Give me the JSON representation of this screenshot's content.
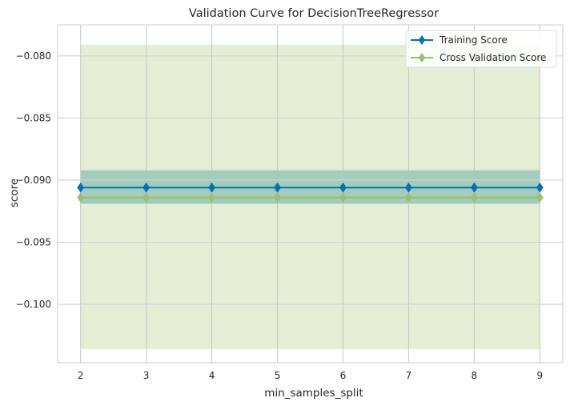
{
  "chart_data": {
    "type": "line",
    "title": "Validation Curve for DecisionTreeRegressor",
    "xlabel": "min_samples_split",
    "ylabel": "score",
    "x": [
      2,
      3,
      4,
      5,
      6,
      7,
      8,
      9
    ],
    "xlim": [
      1.65,
      9.35
    ],
    "ylim": [
      -0.1047,
      -0.0775
    ],
    "yticks": [
      -0.08,
      -0.085,
      -0.09,
      -0.095,
      -0.1
    ],
    "ytick_labels": [
      "−0.080",
      "−0.085",
      "−0.090",
      "−0.095",
      "−0.100"
    ],
    "grid": true,
    "legend_position": "top-right",
    "series": [
      {
        "name": "Training Score",
        "color": "#0072b2",
        "marker": "diamond",
        "values": [
          -0.0906,
          -0.0906,
          -0.0906,
          -0.0906,
          -0.0906,
          -0.0906,
          -0.0906,
          -0.0906
        ],
        "band_upper": -0.0892,
        "band_lower": -0.0919,
        "band_color": "#2a8d8f"
      },
      {
        "name": "Cross Validation Score",
        "color": "#99c06f",
        "marker": "diamond",
        "values": [
          -0.0914,
          -0.0914,
          -0.0914,
          -0.0914,
          -0.0914,
          -0.0914,
          -0.0914,
          -0.0914
        ],
        "band_upper": -0.0791,
        "band_lower": -0.1036,
        "band_color": "#9bbf63"
      }
    ]
  }
}
